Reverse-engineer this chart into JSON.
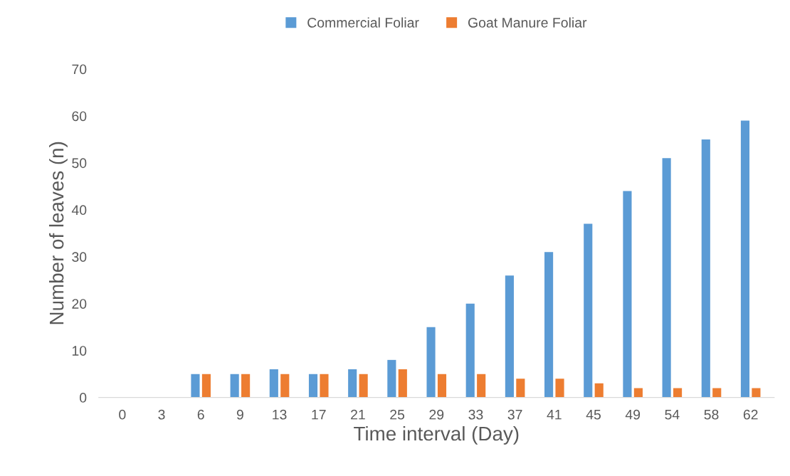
{
  "chart_data": {
    "type": "bar",
    "xlabel": "Time interval (Day)",
    "ylabel": "Number of leaves (n)",
    "categories": [
      "0",
      "3",
      "6",
      "9",
      "13",
      "17",
      "21",
      "25",
      "29",
      "33",
      "37",
      "41",
      "45",
      "49",
      "54",
      "58",
      "62"
    ],
    "series": [
      {
        "name": "Commercial Foliar",
        "color": "#5b9bd5",
        "values": [
          0,
          0,
          5,
          5,
          6,
          5,
          6,
          8,
          15,
          20,
          26,
          31,
          37,
          44,
          51,
          55,
          59
        ]
      },
      {
        "name": "Goat Manure Foliar",
        "color": "#ed7d31",
        "values": [
          0,
          0,
          5,
          5,
          5,
          5,
          5,
          6,
          5,
          5,
          4,
          4,
          3,
          2,
          2,
          2,
          2
        ]
      }
    ],
    "ylim": [
      0,
      70
    ],
    "yticks": [
      0,
      10,
      20,
      30,
      40,
      50,
      60,
      70
    ],
    "grid": false,
    "legend": "top"
  }
}
